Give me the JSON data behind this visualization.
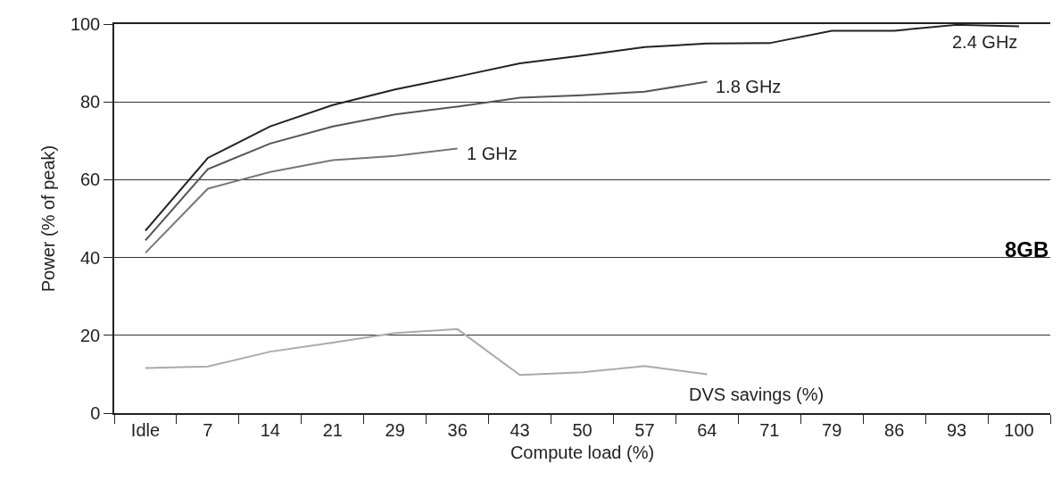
{
  "chart_data": {
    "type": "line",
    "xlabel": "Compute load (%)",
    "ylabel": "Power (% of peak)",
    "categories": [
      "Idle",
      "7",
      "14",
      "21",
      "29",
      "36",
      "43",
      "50",
      "57",
      "64",
      "71",
      "79",
      "86",
      "93",
      "100"
    ],
    "series": [
      {
        "name": "2.4 GHz",
        "color": "#222222",
        "values": [
          46.9,
          65.6,
          73.7,
          79.2,
          83.2,
          86.5,
          89.9,
          91.9,
          94.1,
          95.0,
          95.1,
          98.3,
          98.3,
          99.8,
          99.4
        ]
      },
      {
        "name": "1.8 GHz",
        "color": "#555555",
        "values": [
          44.4,
          62.7,
          69.3,
          73.7,
          76.8,
          78.8,
          81.1,
          81.7,
          82.6,
          85.2,
          null,
          null,
          null,
          null,
          null
        ]
      },
      {
        "name": "1 GHz",
        "color": "#777777",
        "values": [
          41.2,
          57.7,
          62.0,
          65.0,
          66.1,
          68.0,
          null,
          null,
          null,
          null,
          null,
          null,
          null,
          null,
          null
        ]
      },
      {
        "name": "DVS savings (%)",
        "color": "#aaaaaa",
        "values": [
          11.6,
          12.0,
          15.8,
          18.1,
          20.6,
          21.6,
          9.8,
          10.5,
          12.1,
          10.0,
          null,
          null,
          null,
          null,
          null
        ]
      }
    ],
    "ylim": [
      0,
      100
    ],
    "yticks": [
      0,
      20,
      40,
      60,
      80,
      100
    ],
    "grid": "y",
    "legend": false,
    "marker": "none",
    "line_style": "solid",
    "annotations": [
      "8GB"
    ]
  }
}
